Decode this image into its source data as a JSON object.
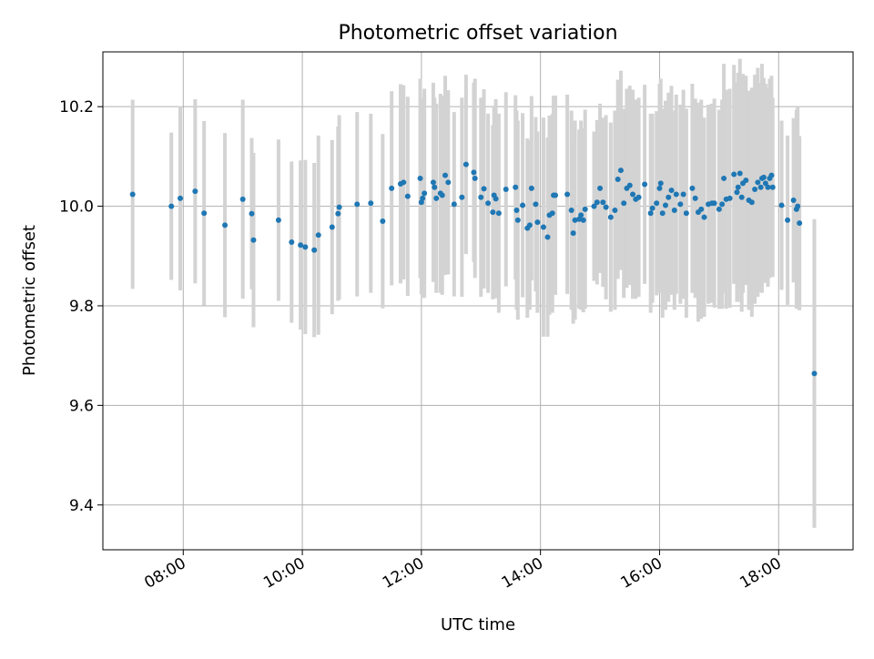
{
  "chart_data": {
    "type": "scatter",
    "title": "Photometric offset variation",
    "xlabel": "UTC time",
    "ylabel": "Photometric offset",
    "x_unit": "hours UTC",
    "xlim": [
      6.65,
      19.25
    ],
    "ylim": [
      9.31,
      10.31
    ],
    "xticks": [
      {
        "value": 8,
        "label": "08:00"
      },
      {
        "value": 10,
        "label": "10:00"
      },
      {
        "value": 12,
        "label": "12:00"
      },
      {
        "value": 14,
        "label": "14:00"
      },
      {
        "value": 16,
        "label": "16:00"
      },
      {
        "value": 18,
        "label": "18:00"
      }
    ],
    "yticks": [
      {
        "value": 9.4,
        "label": "9.4"
      },
      {
        "value": 9.6,
        "label": "9.6"
      },
      {
        "value": 9.8,
        "label": "9.8"
      },
      {
        "value": 10.0,
        "label": "10.0"
      },
      {
        "value": 10.2,
        "label": "10.2"
      }
    ],
    "grid": true,
    "point_color": "#1f77b4",
    "errorbar_color": "#d3d3d3",
    "points": [
      [
        7.15,
        10.024,
        0.19
      ],
      [
        7.8,
        10.0,
        0.148
      ],
      [
        7.95,
        10.016,
        0.185
      ],
      [
        8.2,
        10.03,
        0.185
      ],
      [
        8.35,
        9.986,
        0.185
      ],
      [
        8.7,
        9.962,
        0.185
      ],
      [
        9.0,
        10.014,
        0.2
      ],
      [
        9.15,
        9.985,
        0.152
      ],
      [
        9.18,
        9.932,
        0.175
      ],
      [
        9.6,
        9.972,
        0.162
      ],
      [
        9.82,
        9.928,
        0.162
      ],
      [
        9.97,
        9.922,
        0.17
      ],
      [
        10.05,
        9.918,
        0.175
      ],
      [
        10.2,
        9.912,
        0.175
      ],
      [
        10.27,
        9.942,
        0.2
      ],
      [
        10.5,
        9.958,
        0.175
      ],
      [
        10.6,
        9.985,
        0.175
      ],
      [
        10.62,
        9.998,
        0.185
      ],
      [
        10.92,
        10.004,
        0.185
      ],
      [
        11.15,
        10.006,
        0.18
      ],
      [
        11.35,
        9.97,
        0.175
      ],
      [
        11.5,
        10.036,
        0.195
      ],
      [
        11.65,
        10.045,
        0.2
      ],
      [
        11.7,
        10.048,
        0.195
      ],
      [
        11.77,
        10.02,
        0.2
      ],
      [
        11.98,
        10.056,
        0.2
      ],
      [
        12.0,
        10.008,
        0.185
      ],
      [
        12.02,
        10.016,
        0.2
      ],
      [
        12.05,
        10.026,
        0.21
      ],
      [
        12.2,
        10.048,
        0.2
      ],
      [
        12.22,
        10.038,
        0.18
      ],
      [
        12.25,
        10.016,
        0.19
      ],
      [
        12.32,
        10.026,
        0.2
      ],
      [
        12.35,
        10.022,
        0.2
      ],
      [
        12.4,
        10.062,
        0.2
      ],
      [
        12.45,
        10.048,
        0.185
      ],
      [
        12.55,
        10.004,
        0.185
      ],
      [
        12.68,
        10.018,
        0.2
      ],
      [
        12.75,
        10.084,
        0.18
      ],
      [
        12.88,
        10.068,
        0.18
      ],
      [
        12.9,
        10.056,
        0.2
      ],
      [
        13.0,
        10.018,
        0.2
      ],
      [
        13.05,
        10.035,
        0.2
      ],
      [
        13.12,
        10.006,
        0.18
      ],
      [
        13.2,
        9.988,
        0.175
      ],
      [
        13.22,
        10.022,
        0.18
      ],
      [
        13.25,
        10.015,
        0.2
      ],
      [
        13.3,
        9.986,
        0.2
      ],
      [
        13.42,
        10.034,
        0.195
      ],
      [
        13.58,
        10.038,
        0.185
      ],
      [
        13.6,
        9.992,
        0.2
      ],
      [
        13.62,
        9.972,
        0.2
      ],
      [
        13.7,
        10.002,
        0.185
      ],
      [
        13.78,
        9.956,
        0.18
      ],
      [
        13.82,
        9.962,
        0.17
      ],
      [
        13.85,
        10.036,
        0.185
      ],
      [
        13.92,
        10.004,
        0.175
      ],
      [
        13.95,
        9.968,
        0.182
      ],
      [
        14.05,
        9.958,
        0.22
      ],
      [
        14.12,
        9.938,
        0.2
      ],
      [
        14.15,
        9.982,
        0.2
      ],
      [
        14.2,
        9.986,
        0.2
      ],
      [
        14.22,
        10.022,
        0.2
      ],
      [
        14.25,
        10.022,
        0.2
      ],
      [
        14.45,
        10.024,
        0.2
      ],
      [
        14.52,
        9.992,
        0.2
      ],
      [
        14.55,
        9.946,
        0.182
      ],
      [
        14.58,
        9.972,
        0.2
      ],
      [
        14.65,
        9.974,
        0.18
      ],
      [
        14.68,
        9.982,
        0.19
      ],
      [
        14.72,
        9.972,
        0.185
      ],
      [
        14.75,
        9.994,
        0.2
      ],
      [
        14.9,
        10.0,
        0.15
      ],
      [
        14.95,
        10.008,
        0.165
      ],
      [
        15.0,
        10.036,
        0.17
      ],
      [
        15.05,
        10.008,
        0.17
      ],
      [
        15.1,
        9.998,
        0.185
      ],
      [
        15.18,
        9.978,
        0.19
      ],
      [
        15.25,
        9.992,
        0.2
      ],
      [
        15.3,
        10.054,
        0.2
      ],
      [
        15.35,
        10.072,
        0.2
      ],
      [
        15.4,
        10.006,
        0.19
      ],
      [
        15.45,
        10.036,
        0.2
      ],
      [
        15.5,
        10.042,
        0.2
      ],
      [
        15.55,
        10.024,
        0.21
      ],
      [
        15.6,
        10.014,
        0.2
      ],
      [
        15.65,
        10.018,
        0.2
      ],
      [
        15.75,
        10.044,
        0.2
      ],
      [
        15.85,
        9.986,
        0.2
      ],
      [
        15.88,
        9.996,
        0.19
      ],
      [
        15.95,
        10.006,
        0.185
      ],
      [
        16.0,
        10.036,
        0.21
      ],
      [
        16.02,
        10.046,
        0.21
      ],
      [
        16.05,
        9.986,
        0.21
      ],
      [
        16.1,
        10.002,
        0.21
      ],
      [
        16.15,
        10.018,
        0.21
      ],
      [
        16.2,
        10.032,
        0.21
      ],
      [
        16.25,
        9.992,
        0.2
      ],
      [
        16.28,
        10.024,
        0.2
      ],
      [
        16.35,
        10.004,
        0.2
      ],
      [
        16.4,
        10.024,
        0.21
      ],
      [
        16.45,
        9.986,
        0.21
      ],
      [
        16.55,
        10.036,
        0.21
      ],
      [
        16.6,
        10.016,
        0.2
      ],
      [
        16.65,
        9.988,
        0.22
      ],
      [
        16.7,
        9.994,
        0.22
      ],
      [
        16.75,
        9.978,
        0.2
      ],
      [
        16.82,
        10.004,
        0.2
      ],
      [
        16.88,
        10.006,
        0.2
      ],
      [
        16.92,
        10.006,
        0.21
      ],
      [
        17.0,
        9.994,
        0.2
      ],
      [
        17.05,
        10.004,
        0.21
      ],
      [
        17.08,
        10.056,
        0.23
      ],
      [
        17.12,
        10.014,
        0.22
      ],
      [
        17.18,
        10.016,
        0.22
      ],
      [
        17.25,
        10.064,
        0.22
      ],
      [
        17.3,
        10.028,
        0.22
      ],
      [
        17.32,
        10.038,
        0.23
      ],
      [
        17.35,
        10.066,
        0.23
      ],
      [
        17.38,
        10.018,
        0.23
      ],
      [
        17.4,
        10.046,
        0.22
      ],
      [
        17.45,
        10.052,
        0.21
      ],
      [
        17.5,
        10.012,
        0.22
      ],
      [
        17.55,
        10.008,
        0.23
      ],
      [
        17.6,
        10.034,
        0.23
      ],
      [
        17.65,
        10.048,
        0.23
      ],
      [
        17.7,
        10.038,
        0.21
      ],
      [
        17.72,
        10.056,
        0.23
      ],
      [
        17.75,
        10.058,
        0.2
      ],
      [
        17.78,
        10.046,
        0.2
      ],
      [
        17.82,
        10.038,
        0.2
      ],
      [
        17.85,
        10.056,
        0.2
      ],
      [
        17.88,
        10.062,
        0.2
      ],
      [
        17.9,
        10.038,
        0.18
      ],
      [
        18.05,
        10.002,
        0.17
      ],
      [
        18.15,
        9.972,
        0.17
      ],
      [
        18.25,
        10.012,
        0.165
      ],
      [
        18.3,
        9.994,
        0.2
      ],
      [
        18.32,
        10.0,
        0.2
      ],
      [
        18.35,
        9.966,
        0.175
      ],
      [
        18.6,
        9.664,
        0.31
      ]
    ],
    "points_format": "[x (UTC hours), y (photometric offset), error half-width]"
  }
}
